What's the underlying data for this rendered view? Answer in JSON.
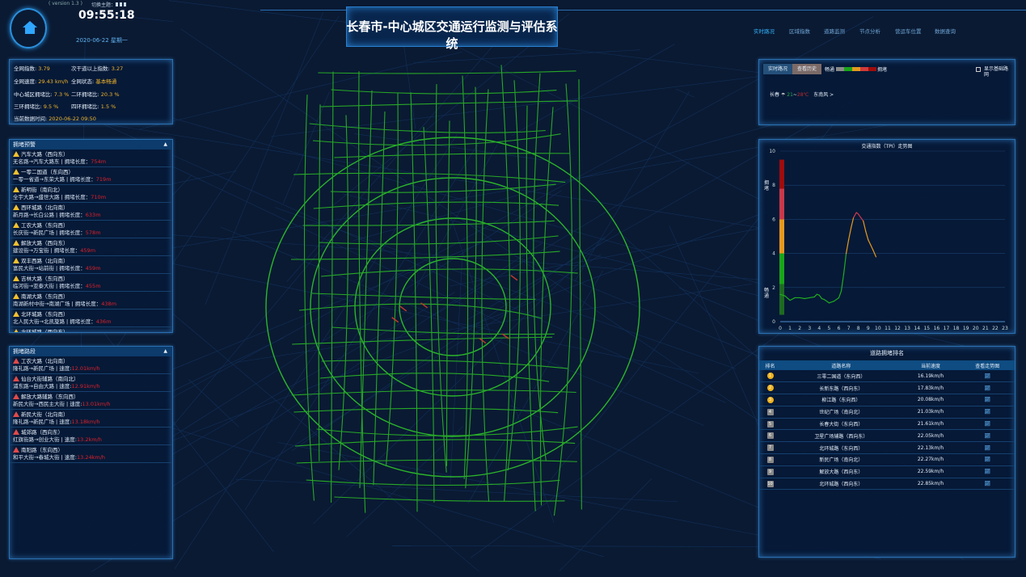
{
  "header": {
    "version": "( version 1.3 )",
    "theme_label": "切换主题：",
    "time": "09:55:18",
    "date": "2020-06-22 星期一",
    "title": "长春市-中心城区交通运行监测与评估系统"
  },
  "nav": [
    {
      "label": "实时路况",
      "active": true
    },
    {
      "label": "区域指数"
    },
    {
      "label": "道路监测"
    },
    {
      "label": "节点分析"
    },
    {
      "label": "营运车位置"
    },
    {
      "label": "数据查询"
    }
  ],
  "stats": {
    "net_index_label": "全网指数:",
    "net_index": "3.79",
    "secondary_index_label": "次干道以上指数:",
    "secondary_index": "3.27",
    "net_speed_label": "全网速度:",
    "net_speed": "29.43 km/h",
    "net_state_label": "全网状态:",
    "net_state": "基本畅通",
    "center_ratio_label": "中心城区拥堵比:",
    "center_ratio": "7.3 %",
    "ring2_label": "二环拥堵比:",
    "ring2": "20.3 %",
    "ring3_label": "三环拥堵比:",
    "ring3": "9.5 %",
    "ring4_label": "四环拥堵比:",
    "ring4": "1.5 %",
    "data_time_label": "当前数据时间:",
    "data_time": "2020-06-22 09:50"
  },
  "congestion_warning": {
    "title": "拥堵预警",
    "length_label": "拥堵长度：",
    "items": [
      {
        "road": "汽车大路（西向东）",
        "segment": "无名路→汽车大路东",
        "length": "754m"
      },
      {
        "road": "一零二国道（东向西）",
        "segment": "一零一省道→东荣大路",
        "length": "719m"
      },
      {
        "road": "新明街（南向北）",
        "segment": "全宇大路→盛世大路",
        "length": "710m"
      },
      {
        "road": "西环城路（北向南）",
        "segment": "新月路→长白公路",
        "length": "633m"
      },
      {
        "road": "工农大路（东向西）",
        "segment": "长庆街→新民广场",
        "length": "578m"
      },
      {
        "road": "解放大路（西向东）",
        "segment": "建设街→万宝街",
        "length": "459m"
      },
      {
        "road": "双丰西路（北向南）",
        "segment": "富民大街→站前街",
        "length": "459m"
      },
      {
        "road": "吉林大路（东向西）",
        "segment": "临河街→亚泰大街",
        "length": "455m"
      },
      {
        "road": "南湖大路（东向西）",
        "segment": "南湖新村中街→南湖广场",
        "length": "438m"
      },
      {
        "road": "北环城路（东向西）",
        "segment": "北人民大街→北凯旋路",
        "length": "436m"
      },
      {
        "road": "北环城路（西向东）",
        "segment": "",
        "length": ""
      }
    ]
  },
  "congested_roads": {
    "title": "拥堵路段",
    "speed_label": "速度:",
    "items": [
      {
        "road": "工农大路（北向南）",
        "segment": "隆礼路→新民广场",
        "speed": "12.01km/h"
      },
      {
        "road": "仙台大街辅路（南向北）",
        "segment": "浦东路→自由大路",
        "speed": "12.91km/h"
      },
      {
        "road": "解放大路辅路（东向西）",
        "segment": "新民大街→西民主大街",
        "speed": "13.01km/h"
      },
      {
        "road": "新民大街（北向南）",
        "segment": "隆礼路→新民广场",
        "speed": "13.18km/h"
      },
      {
        "road": "城郊路（西向东）",
        "segment": "红旗街路→创业大街",
        "speed": "13.2km/h"
      },
      {
        "road": "南阳路（东向西）",
        "segment": "和平大街→春城大街",
        "speed": "13.24km/h"
      }
    ]
  },
  "traffic_panel": {
    "tab_realtime": "实时路况",
    "tab_history": "查看历史",
    "smooth": "畅通",
    "congested": "拥堵",
    "legend_colors": [
      "#8a8a8a",
      "#1aa51a",
      "#e39a1f",
      "#d23a3a",
      "#9e0d0d"
    ],
    "show_base": "显示基础路网",
    "city": "长春",
    "temp_low": "21",
    "temp_sep": "~",
    "temp_high": "28℃",
    "wind": "东南风 >"
  },
  "chart_data": {
    "type": "line",
    "title": "交通指数（TPI）走势图",
    "ylabel_top": "拥堵",
    "ylabel_bottom": "畅通",
    "xlim": [
      0,
      23
    ],
    "ylim": [
      0,
      10
    ],
    "x_ticks": [
      0,
      1,
      2,
      3,
      4,
      5,
      6,
      7,
      8,
      9,
      10,
      11,
      12,
      13,
      14,
      15,
      16,
      17,
      18,
      19,
      20,
      21,
      22,
      23
    ],
    "y_ticks": [
      0,
      2,
      4,
      6,
      8,
      10
    ],
    "grid": true,
    "level_bands": [
      {
        "from": 0.4,
        "to": 2.2,
        "color": "#1e6b22"
      },
      {
        "from": 2.2,
        "to": 4,
        "color": "#1aa51a"
      },
      {
        "from": 4,
        "to": 6,
        "color": "#e39a1f"
      },
      {
        "from": 6,
        "to": 7.8,
        "color": "#c8394a"
      },
      {
        "from": 7.8,
        "to": 9.5,
        "color": "#9e0d0d"
      }
    ],
    "x": [
      0,
      0.5,
      1,
      1.5,
      2,
      2.5,
      3,
      3.5,
      3.75,
      4,
      4.25,
      4.5,
      5,
      5.5,
      6,
      6.25,
      6.5,
      6.75,
      7,
      7.25,
      7.5,
      7.8,
      8,
      8.25,
      8.5,
      8.75,
      9,
      9.25,
      9.5,
      9.8
    ],
    "y": [
      1.6,
      1.5,
      1.25,
      1.4,
      1.4,
      1.35,
      1.4,
      1.45,
      1.6,
      1.55,
      1.35,
      1.3,
      1.1,
      1.2,
      1.4,
      1.8,
      2.8,
      4.0,
      4.8,
      5.5,
      6.1,
      6.4,
      6.3,
      6.1,
      5.9,
      5.3,
      4.8,
      4.5,
      4.2,
      3.8
    ]
  },
  "ranking": {
    "title": "道路拥堵排名",
    "headers": [
      "排名",
      "道路名称",
      "当前速度",
      "查看走势图"
    ],
    "rows": [
      {
        "rank": "1",
        "road": "三零二国道（东向西）",
        "speed": "16.19km/h"
      },
      {
        "rank": "2",
        "road": "长新东路（西向东）",
        "speed": "17.83km/h"
      },
      {
        "rank": "3",
        "road": "柳江路（东向西）",
        "speed": "20.08km/h"
      },
      {
        "rank": "4",
        "road": "世纪广场（南向北）",
        "speed": "21.03km/h"
      },
      {
        "rank": "5",
        "road": "长春大街（东向西）",
        "speed": "21.61km/h"
      },
      {
        "rank": "6",
        "road": "卫星广场辅路（西向东）",
        "speed": "22.05km/h"
      },
      {
        "rank": "7",
        "road": "北环城路（东向西）",
        "speed": "22.13km/h"
      },
      {
        "rank": "8",
        "road": "新民广场（南向北）",
        "speed": "22.27km/h"
      },
      {
        "rank": "9",
        "road": "解放大路（西向东）",
        "speed": "22.59km/h"
      },
      {
        "rank": "10",
        "road": "北环城路（西向东）",
        "speed": "22.85km/h"
      }
    ]
  }
}
